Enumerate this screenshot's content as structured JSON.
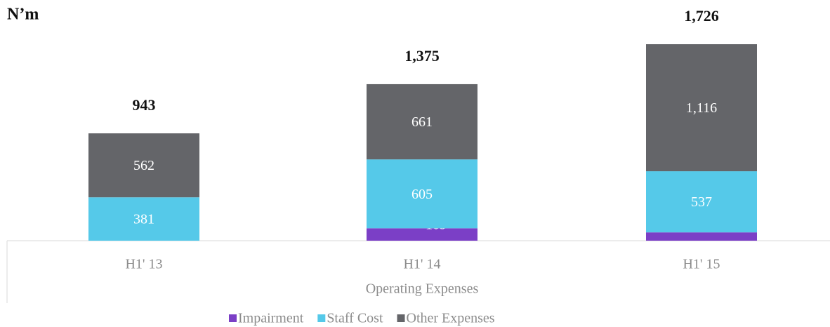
{
  "chart_data": {
    "type": "stacked_bar",
    "ylabel": "N’m",
    "xlabel": "Operating Expenses",
    "categories": [
      "H1' 13",
      "H1' 14",
      "H1' 15"
    ],
    "series": [
      {
        "name": "Impairment",
        "color": "#7b3fc6",
        "values": [
          null,
          109,
          73
        ]
      },
      {
        "name": "Staff Cost",
        "color": "#55c9e9",
        "values": [
          381,
          605,
          537
        ]
      },
      {
        "name": "Other Expenses",
        "color": "#646569",
        "values": [
          562,
          661,
          1116
        ],
        "value_labels": [
          "562",
          "661",
          "1,116"
        ]
      }
    ],
    "totals": {
      "values": [
        943,
        1375,
        1726
      ],
      "value_labels": [
        "943",
        "1,375",
        "1,726"
      ]
    },
    "ylim": [
      0,
      1800
    ]
  }
}
